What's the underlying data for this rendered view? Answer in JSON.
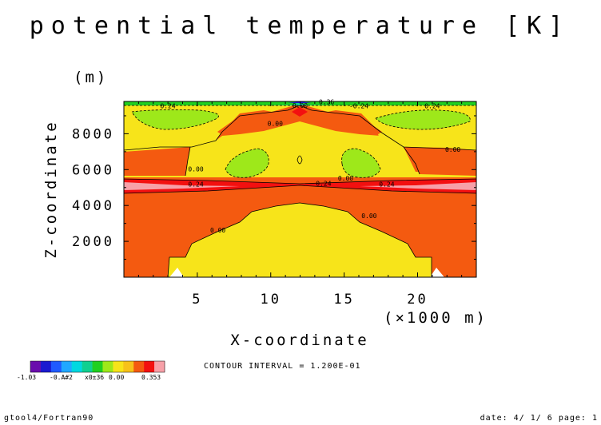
{
  "chart_data": {
    "type": "heatmap",
    "title": "potential temperature [K]",
    "xlabel": "X-coordinate",
    "x_unit_label": "(×1000 m)",
    "ylabel": "Z-coordinate",
    "y_unit_label": "(m)",
    "xlim": [
      0,
      24
    ],
    "ylim": [
      0,
      9800
    ],
    "x_ticks": [
      5,
      10,
      15,
      20
    ],
    "y_ticks": [
      2000,
      4000,
      6000,
      8000
    ],
    "x_tick_labels": [
      "5",
      "10",
      "15",
      "20"
    ],
    "y_tick_labels": [
      "2000",
      "4000",
      "6000",
      "8000"
    ],
    "contour_interval_text": "CONTOUR INTERVAL = 1.200E-01",
    "colorbar": {
      "colors": [
        "#6a0dad",
        "#1a1ad0",
        "#1f5aff",
        "#20a8ff",
        "#00d8e0",
        "#10d090",
        "#20d020",
        "#9ee81a",
        "#f7e41a",
        "#f7c21a",
        "#f45a10",
        "#f31010",
        "#f7a0a8"
      ],
      "tick_labels": [
        "-1.03",
        "-0.A#2",
        "x0±36",
        "0.00",
        "0.353"
      ]
    },
    "contour_labels": [
      {
        "x": 3.0,
        "y": 9420,
        "text": "0.24"
      },
      {
        "x": 10.3,
        "y": 8440,
        "text": "0.00"
      },
      {
        "x": 12.0,
        "y": 9450,
        "text": "0.00"
      },
      {
        "x": 13.8,
        "y": 9650,
        "text": "0.36"
      },
      {
        "x": 16.0,
        "y": 9420,
        "text": "-0.24"
      },
      {
        "x": 21.0,
        "y": 9420,
        "text": "0.24"
      },
      {
        "x": 22.4,
        "y": 7000,
        "text": "0.00"
      },
      {
        "x": 4.9,
        "y": 5900,
        "text": "0.00"
      },
      {
        "x": 15.1,
        "y": 5400,
        "text": "0.00"
      },
      {
        "x": 4.9,
        "y": 5060,
        "text": "0.24"
      },
      {
        "x": 13.6,
        "y": 5100,
        "text": "0.24"
      },
      {
        "x": 17.9,
        "y": 5050,
        "text": "0.24"
      },
      {
        "x": 6.4,
        "y": 2500,
        "text": "0.00"
      },
      {
        "x": 16.7,
        "y": 3300,
        "text": "0.00"
      }
    ]
  },
  "footer": {
    "left": "gtool4/Fortran90",
    "right": "date: 4/ 1/ 6 page: 1"
  }
}
